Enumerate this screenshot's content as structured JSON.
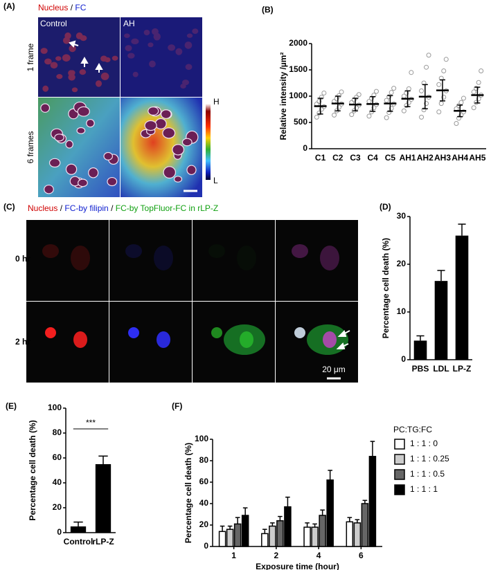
{
  "panels": {
    "A": {
      "label": "(A)",
      "title": {
        "part1": "Nucleus",
        "sep": " / ",
        "part2": "FC"
      },
      "columns": [
        "Control",
        "AH"
      ],
      "rows": [
        "1 frame",
        "6 frames"
      ],
      "colorbar": [
        "H",
        "L"
      ]
    },
    "C": {
      "label": "(C)",
      "title": {
        "part1": "Nucleus",
        "sep1": " / ",
        "part2": "FC-by filipin",
        "sep2": " / ",
        "part3": "FC-by TopFluor-FC in rLP-Z"
      },
      "rows": [
        "0 hr",
        "2 hr"
      ],
      "scale": "20 μm"
    }
  },
  "chart_data": [
    {
      "type": "dot",
      "label": "(B)",
      "ylabel": "Relative intensity /µm²",
      "categories": [
        "C1",
        "C2",
        "C3",
        "C4",
        "C5",
        "AH1",
        "AH2",
        "AH3",
        "AH4",
        "AH5"
      ],
      "values": [
        810,
        860,
        840,
        850,
        860,
        950,
        990,
        1110,
        720,
        1020
      ],
      "errors": [
        150,
        140,
        120,
        140,
        150,
        150,
        230,
        200,
        110,
        150
      ],
      "points": [
        [
          600,
          680,
          750,
          800,
          850,
          900,
          980,
          1060
        ],
        [
          640,
          720,
          790,
          850,
          900,
          950,
          1010,
          1080
        ],
        [
          650,
          720,
          780,
          830,
          880,
          930,
          980,
          1030
        ],
        [
          620,
          700,
          780,
          840,
          900,
          960,
          1020,
          1090
        ],
        [
          590,
          690,
          770,
          850,
          920,
          990,
          1070,
          1150
        ],
        [
          720,
          820,
          880,
          940,
          1000,
          1060,
          1140,
          1450
        ],
        [
          600,
          740,
          860,
          980,
          1100,
          1250,
          1550,
          1780
        ],
        [
          700,
          860,
          980,
          1100,
          1220,
          1340,
          1480,
          1700
        ],
        [
          480,
          580,
          640,
          700,
          760,
          820,
          880,
          960
        ],
        [
          780,
          880,
          950,
          1020,
          1080,
          1150,
          1260,
          1480
        ]
      ],
      "color": "#999999",
      "ylim": [
        0,
        2000
      ],
      "yticks": [
        0,
        500,
        1000,
        1500,
        2000
      ]
    },
    {
      "type": "bar",
      "label": "(D)",
      "ylabel": "Percentage cell death (%)",
      "categories": [
        "PBS",
        "LDL",
        "LP-Z"
      ],
      "values": [
        4,
        16.5,
        26
      ],
      "errors": [
        1,
        2.2,
        2.4
      ],
      "color": "#000000",
      "ylim": [
        0,
        30
      ],
      "yticks": [
        0,
        10,
        20,
        30
      ]
    },
    {
      "type": "bar",
      "label": "(E)",
      "ylabel": "Percentage cell death (%)",
      "categories": [
        "Control",
        "rLP-Z"
      ],
      "values": [
        5,
        55
      ],
      "errors": [
        3.5,
        6.5
      ],
      "annotation": "***",
      "color": "#000000",
      "ylim": [
        0,
        100
      ],
      "yticks": [
        0,
        20,
        40,
        60,
        80,
        100
      ]
    },
    {
      "type": "bar",
      "label": "(F)",
      "ylabel": "Percentage cell death (%)",
      "xlabel": "Exposure time (hour)",
      "legend_title": "PC:TG:FC",
      "categories": [
        "1",
        "2",
        "4",
        "6"
      ],
      "series": [
        {
          "name": "1 : 1 : 0",
          "color": "#ffffff",
          "values": [
            14,
            12,
            18,
            23
          ],
          "errors": [
            5,
            4,
            4,
            4
          ]
        },
        {
          "name": "1 : 1 : 0.25",
          "color": "#cccccc",
          "values": [
            16,
            19,
            18,
            22
          ],
          "errors": [
            3,
            3,
            3,
            3
          ]
        },
        {
          "name": "1 : 1 : 0.5",
          "color": "#666666",
          "values": [
            21,
            24,
            29,
            40
          ],
          "errors": [
            6,
            4,
            5,
            3
          ]
        },
        {
          "name": "1 : 1 : 1",
          "color": "#000000",
          "values": [
            29,
            37,
            62,
            84
          ],
          "errors": [
            7,
            9,
            9,
            14
          ]
        }
      ],
      "ylim": [
        0,
        100
      ],
      "yticks": [
        0,
        20,
        40,
        60,
        80,
        100
      ]
    }
  ]
}
